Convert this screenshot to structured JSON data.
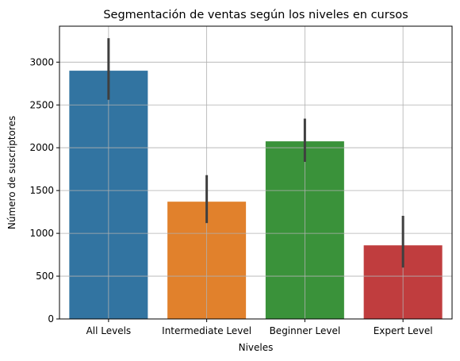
{
  "chart_data": {
    "type": "bar",
    "title": "Segmentación de ventas según los niveles en cursos",
    "xlabel": "Niveles",
    "ylabel": "Número de suscriptores",
    "categories": [
      "All Levels",
      "Intermediate Level",
      "Beginner Level",
      "Expert Level"
    ],
    "values": [
      2900,
      1370,
      2075,
      860
    ],
    "error_low": [
      2560,
      1120,
      1835,
      600
    ],
    "error_high": [
      3280,
      1680,
      2340,
      1205
    ],
    "colors": [
      "#3274a1",
      "#e1812c",
      "#3a923a",
      "#c03d3e"
    ],
    "ylim": [
      0,
      3420
    ],
    "yticks": [
      0,
      500,
      1000,
      1500,
      2000,
      2500,
      3000
    ],
    "grid": true
  }
}
